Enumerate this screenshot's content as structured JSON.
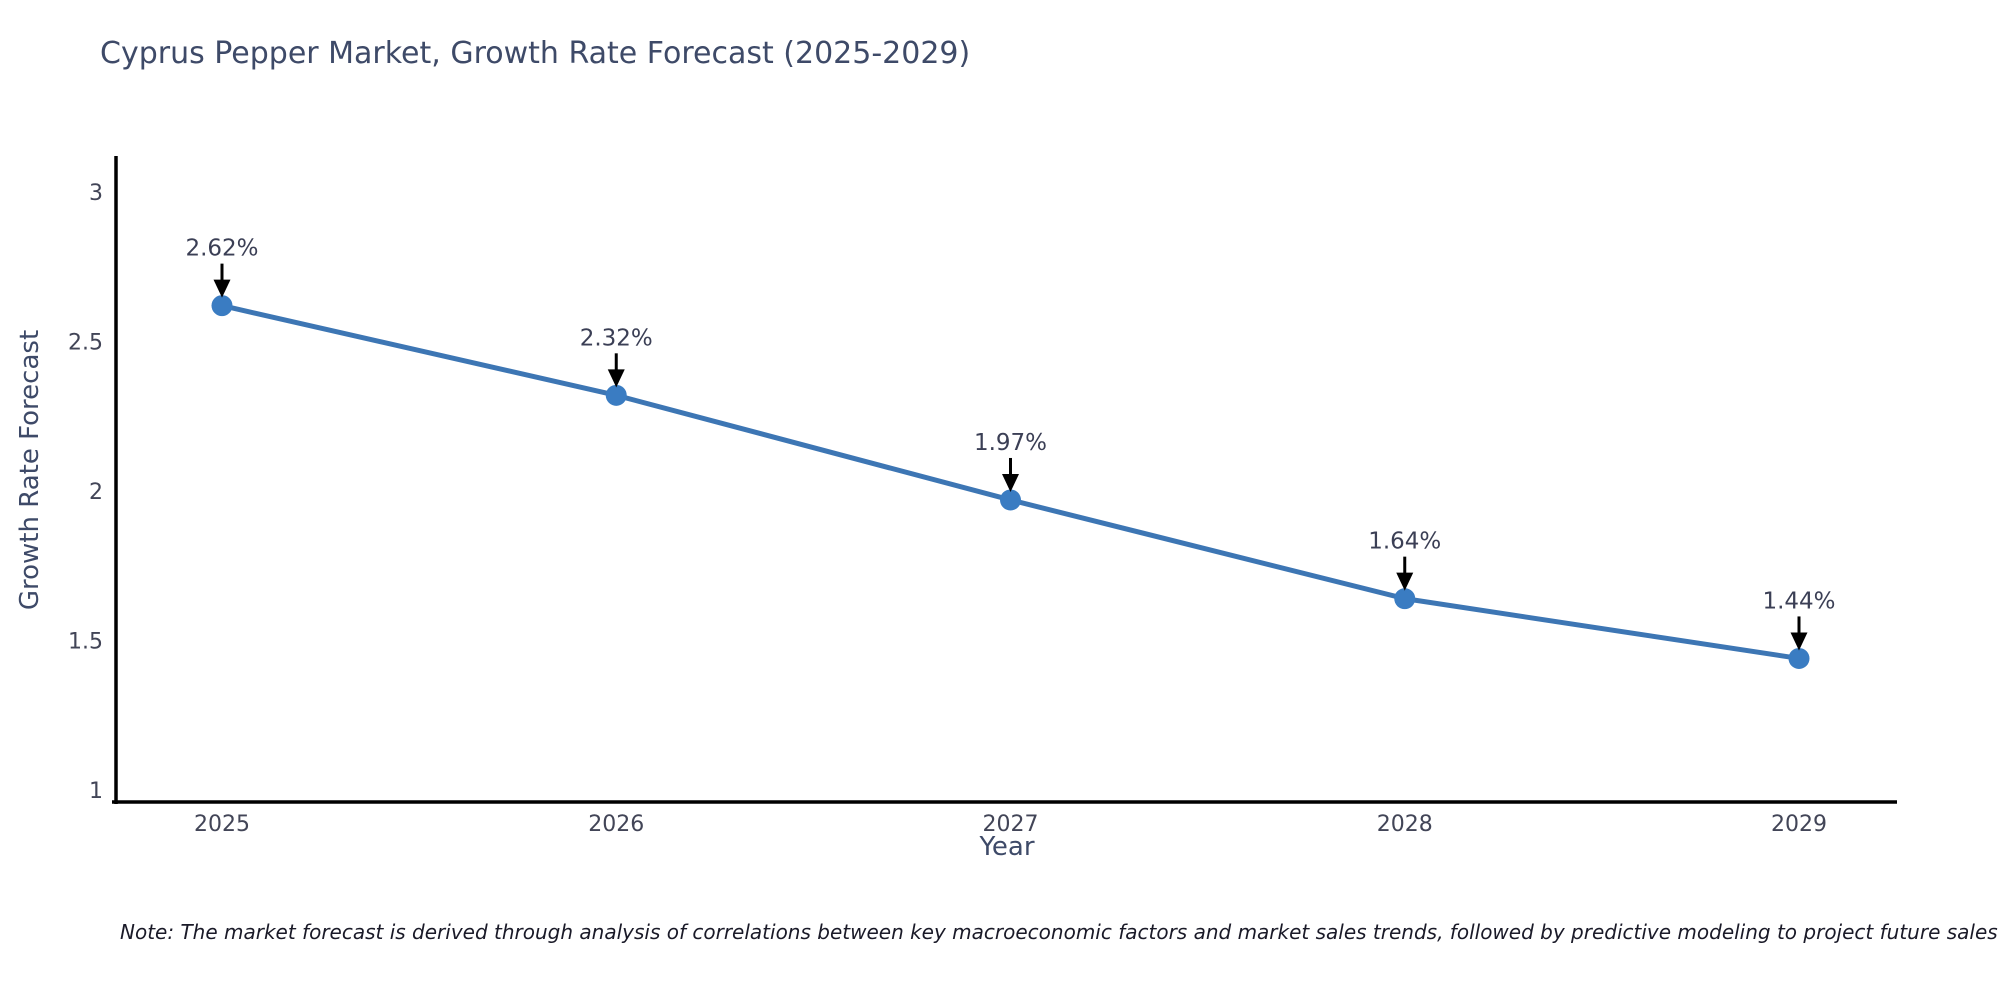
{
  "note": "Note: The market forecast is derived through analysis of correlations between key macroeconomic factors and market sales trends, followed by predictive modeling to project future sales",
  "chart_data": {
    "type": "line",
    "title": "Cyprus Pepper Market, Growth Rate Forecast (2025-2029)",
    "x": [
      "2025",
      "2026",
      "2027",
      "2028",
      "2029"
    ],
    "y": [
      2.62,
      2.32,
      1.97,
      1.64,
      1.44
    ],
    "point_labels": [
      "2.62%",
      "2.32%",
      "1.97%",
      "1.64%",
      "1.44%"
    ],
    "xlabel": "Year",
    "ylabel": "Growth Rate Forecast",
    "yticks": [
      1,
      1.5,
      2,
      2.5,
      3
    ],
    "ytick_labels": [
      "1",
      "1.5",
      "2",
      "2.5",
      "3"
    ],
    "ylim": [
      1,
      3
    ],
    "grid": false,
    "legend": "none",
    "annotation_style": "black-arrow-down-to-point",
    "colors": {
      "line": "#3d76b4",
      "marker": "#3a7cc2",
      "axis": "#000000",
      "arrow": "#000000",
      "title_text": "#3e4a68",
      "tick_text": "#424557",
      "annotation_text": "#3b3f55"
    }
  }
}
